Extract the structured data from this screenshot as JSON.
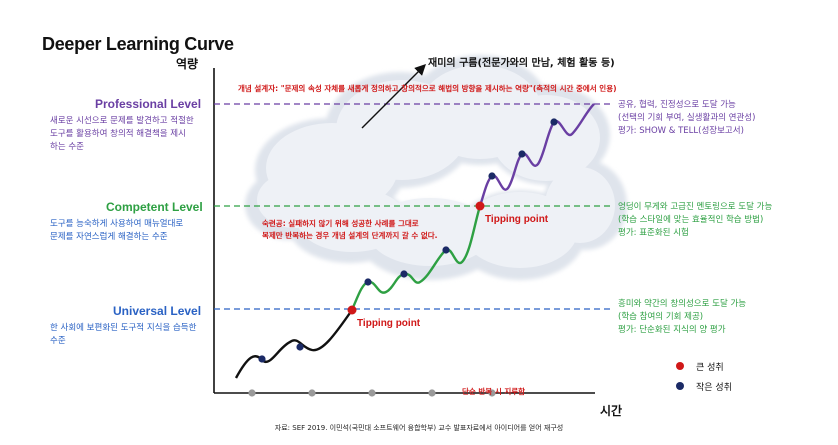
{
  "title": "Deeper Learning Curve",
  "axes": {
    "y": "역량",
    "x": "시간"
  },
  "cloud": {
    "label": "재미의 구름(전문가와의 만남, 체험 활동 등)"
  },
  "definition": "개념 설계자: \"문제의 속성 자체를 새롭게 정의하고 창의적으로 해법의 방향을 제시하는 역량\"(축적의 시간 중에서 인용)",
  "copy_note": {
    "line1": "숙련공: 실패하지 않기 위해 성공한 사례를 그대로",
    "line2": "복제만 반복하는 경우 개념 설계의 단계까지 갈 수 없다."
  },
  "bottom_note": "단순 반복 시 지루함",
  "levels": {
    "professional": {
      "name": "Professional Level",
      "left_line1": "새로운 시선으로 문제를 발견하고 적절한",
      "left_line2": "도구를 활용하여 창의적 해결책을 제시",
      "left_line3": "하는 수준",
      "right_line1": "공유, 협력, 진정성으로 도달 가능",
      "right_line2": "(선택의 기회 부여, 실생활과의 연관성)",
      "right_line3": "평가: SHOW & TELL(성장보고서)",
      "color": "#6a3fa3"
    },
    "competent": {
      "name": "Competent Level",
      "left_line1": "도구를 능숙하게 사용하여 매뉴얼대로",
      "left_line2": "문제를 자연스럽게 해결하는 수준",
      "right_line1": "엉덩이 무게와 고급진 멘토링으로 도달 가능",
      "right_line2": "(학습 스타일에 맞는 효율적인 학습 방법)",
      "right_line3": "평가: 표준화된 시험",
      "color": "#2ea043"
    },
    "universal": {
      "name": "Universal Level",
      "left_line1": "한 사회에 보편화된 도구적 지식을 습득한",
      "left_line2": "수준",
      "right_line1": "흥미와 약간의 창의성으로 도달 가능",
      "right_line2": "(학습 참여의 기회 제공)",
      "right_line3": "평가: 단순화된 지식의 양 평가",
      "color": "#2a62c4"
    }
  },
  "tipping_point": "Tipping point",
  "legend": {
    "big": "큰 성취",
    "small": "작은 성취"
  },
  "source": "자료: SEF 2019. 이민석(국민대 소프트웨어 융합학부) 교수 발표자료에서 아이디어를 얻어 재구성",
  "colors": {
    "red": "#d01818",
    "navy": "#1b2a66",
    "green": "#2ea043",
    "purple": "#6a3fa3",
    "blue": "#2a62c4",
    "gray": "#9a9a9a"
  }
}
